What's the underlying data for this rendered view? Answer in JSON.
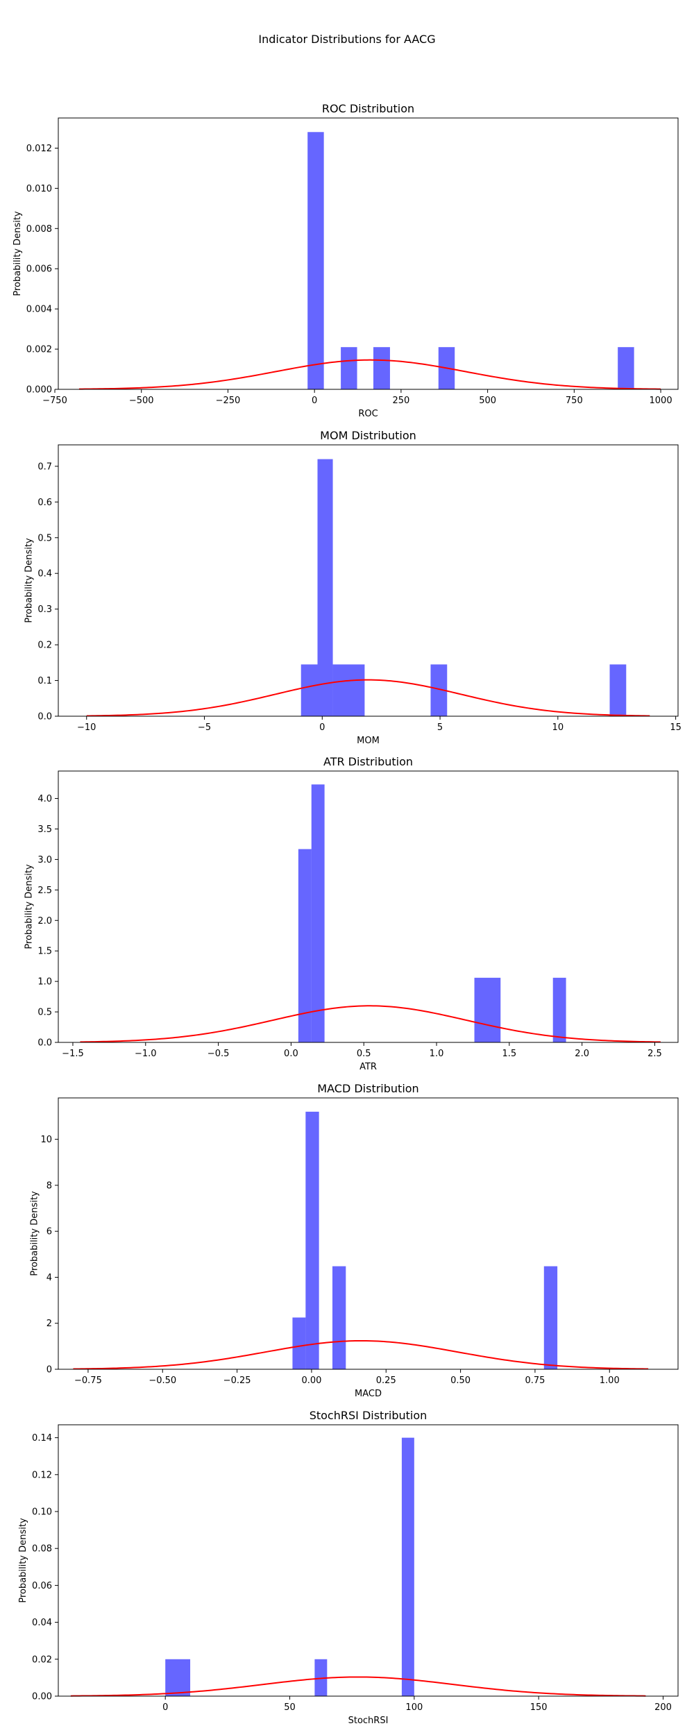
{
  "figure_title": "Indicator Distributions for AACG",
  "colors": {
    "bars": "#0000ff",
    "curve": "#ff0000"
  },
  "chart_data": [
    {
      "type": "bar",
      "title": "ROC Distribution",
      "xlabel": "ROC",
      "ylabel": "Probability Density",
      "xlim": [
        -740,
        1050
      ],
      "ylim": [
        0,
        0.0135
      ],
      "xticks": [
        -750,
        -500,
        -250,
        0,
        250,
        500,
        750,
        1000
      ],
      "xtick_labels": [
        "−750",
        "−500",
        "−250",
        "0",
        "250",
        "500",
        "750",
        "1000"
      ],
      "yticks": [
        0,
        0.002,
        0.004,
        0.006,
        0.008,
        0.01,
        0.012
      ],
      "ytick_labels": [
        "0.000",
        "0.002",
        "0.004",
        "0.006",
        "0.008",
        "0.010",
        "0.012"
      ],
      "bins": [
        {
          "x0": -20,
          "x1": 27,
          "value": 0.0128
        },
        {
          "x0": 76,
          "x1": 123,
          "value": 0.0021
        },
        {
          "x0": 170,
          "x1": 218,
          "value": 0.0021
        },
        {
          "x0": 358,
          "x1": 405,
          "value": 0.0021
        },
        {
          "x0": 876,
          "x1": 923,
          "value": 0.0021
        }
      ],
      "normal_fit": {
        "mean": 162,
        "std": 273,
        "xmin": -680,
        "xmax": 1000
      }
    },
    {
      "type": "bar",
      "title": "MOM Distribution",
      "xlabel": "MOM",
      "ylabel": "Probability Density",
      "xlim": [
        -11.2,
        15.1
      ],
      "ylim": [
        0,
        0.76
      ],
      "xticks": [
        -10,
        -5,
        0,
        5,
        10,
        15
      ],
      "xtick_labels": [
        "−10",
        "−5",
        "0",
        "5",
        "10",
        "15"
      ],
      "yticks": [
        0,
        0.1,
        0.2,
        0.3,
        0.4,
        0.5,
        0.6,
        0.7
      ],
      "ytick_labels": [
        "0.0",
        "0.1",
        "0.2",
        "0.3",
        "0.4",
        "0.5",
        "0.6",
        "0.7"
      ],
      "bins": [
        {
          "x0": -0.9,
          "x1": -0.2,
          "value": 0.145
        },
        {
          "x0": -0.2,
          "x1": 0.45,
          "value": 0.72
        },
        {
          "x0": 0.45,
          "x1": 1.8,
          "value": 0.145
        },
        {
          "x0": 4.6,
          "x1": 5.3,
          "value": 0.145
        },
        {
          "x0": 12.2,
          "x1": 12.9,
          "value": 0.145
        }
      ],
      "normal_fit": {
        "mean": 1.95,
        "std": 3.92,
        "xmin": -10,
        "xmax": 13.9
      }
    },
    {
      "type": "bar",
      "title": "ATR Distribution",
      "xlabel": "ATR",
      "ylabel": "Probability Density",
      "xlim": [
        -1.6,
        2.66
      ],
      "ylim": [
        0,
        4.45
      ],
      "xticks": [
        -1.5,
        -1.0,
        -0.5,
        0.0,
        0.5,
        1.0,
        1.5,
        2.0,
        2.5
      ],
      "xtick_labels": [
        "−1.5",
        "−1.0",
        "−0.5",
        "0.0",
        "0.5",
        "1.0",
        "1.5",
        "2.0",
        "2.5"
      ],
      "yticks": [
        0,
        0.5,
        1.0,
        1.5,
        2.0,
        2.5,
        3.0,
        3.5,
        4.0
      ],
      "ytick_labels": [
        "0.0",
        "0.5",
        "1.0",
        "1.5",
        "2.0",
        "2.5",
        "3.0",
        "3.5",
        "4.0"
      ],
      "bins": [
        {
          "x0": 0.05,
          "x1": 0.14,
          "value": 3.17
        },
        {
          "x0": 0.14,
          "x1": 0.23,
          "value": 4.23
        },
        {
          "x0": 1.26,
          "x1": 1.44,
          "value": 1.06
        },
        {
          "x0": 1.8,
          "x1": 1.89,
          "value": 1.06
        }
      ],
      "normal_fit": {
        "mean": 0.54,
        "std": 0.665,
        "xmin": -1.45,
        "xmax": 2.54
      }
    },
    {
      "type": "bar",
      "title": "MACD Distribution",
      "xlabel": "MACD",
      "ylabel": "Probability Density",
      "xlim": [
        -0.85,
        1.23
      ],
      "ylim": [
        0,
        11.8
      ],
      "xticks": [
        -0.75,
        -0.5,
        -0.25,
        0.0,
        0.25,
        0.5,
        0.75,
        1.0
      ],
      "xtick_labels": [
        "−0.75",
        "−0.50",
        "−0.25",
        "0.00",
        "0.25",
        "0.50",
        "0.75",
        "1.00"
      ],
      "yticks": [
        0,
        2,
        4,
        6,
        8,
        10
      ],
      "ytick_labels": [
        "0",
        "2",
        "4",
        "6",
        "8",
        "10"
      ],
      "bins": [
        {
          "x0": -0.064,
          "x1": -0.02,
          "value": 2.25
        },
        {
          "x0": -0.02,
          "x1": 0.025,
          "value": 11.2
        },
        {
          "x0": 0.07,
          "x1": 0.115,
          "value": 4.48
        },
        {
          "x0": 0.78,
          "x1": 0.825,
          "value": 4.48
        }
      ],
      "normal_fit": {
        "mean": 0.168,
        "std": 0.322,
        "xmin": -0.8,
        "xmax": 1.13
      }
    },
    {
      "type": "bar",
      "title": "StochRSI Distribution",
      "xlabel": "StochRSI",
      "ylabel": "Probability Density",
      "xlim": [
        -43,
        206
      ],
      "ylim": [
        0,
        0.147
      ],
      "xticks": [
        0,
        50,
        100,
        150,
        200
      ],
      "xtick_labels": [
        "0",
        "50",
        "100",
        "150",
        "200"
      ],
      "yticks": [
        0,
        0.02,
        0.04,
        0.06,
        0.08,
        0.1,
        0.12,
        0.14
      ],
      "ytick_labels": [
        "0.00",
        "0.02",
        "0.04",
        "0.06",
        "0.08",
        "0.10",
        "0.12",
        "0.14"
      ],
      "bins": [
        {
          "x0": 0,
          "x1": 10,
          "value": 0.02
        },
        {
          "x0": 60,
          "x1": 65,
          "value": 0.02
        },
        {
          "x0": 95,
          "x1": 100,
          "value": 0.14
        }
      ],
      "normal_fit": {
        "mean": 77.5,
        "std": 38.5,
        "xmin": -38,
        "xmax": 193
      }
    }
  ]
}
